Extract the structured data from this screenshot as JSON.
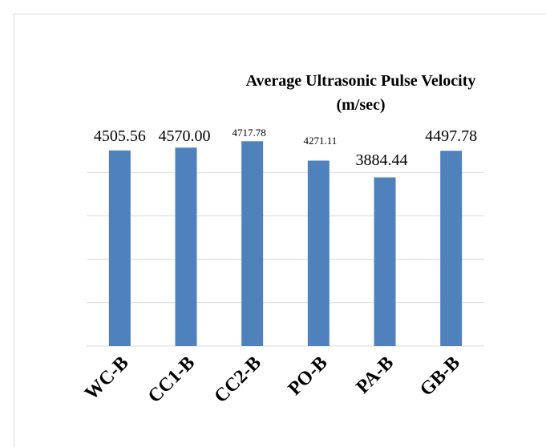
{
  "chart_data": {
    "type": "bar",
    "title": "Average Ultrasonic Pulse Velocity (m/sec)",
    "categories": [
      "WC-B",
      "CC1-B",
      "CC2-B",
      "PO-B",
      "PA-B",
      "GB-B"
    ],
    "values": [
      4505.56,
      4570,
      4717.78,
      4271.11,
      3884.44,
      4497.78
    ],
    "value_labels": [
      "4505.56",
      "4570.00",
      "4717.78",
      "4271.11",
      "3884.44",
      "4497.78"
    ],
    "color": "#4f81bd",
    "ylim": [
      0,
      5000
    ],
    "yticks": [
      0,
      1000,
      2000,
      3000,
      4000
    ],
    "grid": true
  }
}
